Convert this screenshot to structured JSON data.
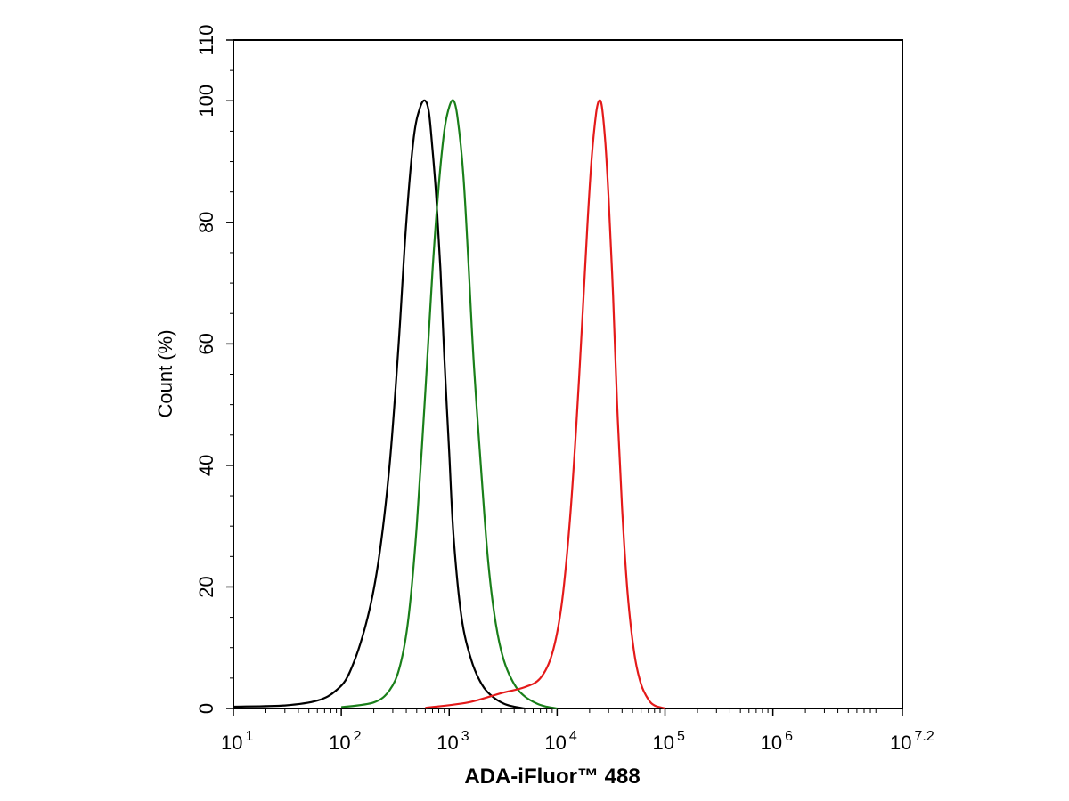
{
  "chart_data": {
    "type": "line",
    "title": "",
    "xlabel": "ADA-iFluor™ 488",
    "ylabel": "Count  (%)",
    "x_scale": "log",
    "xlim": [
      10,
      15848932
    ],
    "ylim": [
      0,
      110
    ],
    "x_ticks": [
      {
        "base": "10",
        "exp": "1"
      },
      {
        "base": "10",
        "exp": "2"
      },
      {
        "base": "10",
        "exp": "3"
      },
      {
        "base": "10",
        "exp": "4"
      },
      {
        "base": "10",
        "exp": "5"
      },
      {
        "base": "10",
        "exp": "6"
      },
      {
        "base": "10",
        "exp": "7.2"
      }
    ],
    "y_ticks": [
      "0",
      "20",
      "40",
      "60",
      "80",
      "100",
      "110"
    ],
    "grid": false,
    "legend": "none",
    "series": [
      {
        "color": "#000000",
        "x": [
          10,
          30,
          60,
          90,
          120,
          170,
          220,
          280,
          340,
          400,
          470,
          540,
          600,
          650,
          700,
          760,
          830,
          900,
          1000,
          1100,
          1300,
          1600,
          2000,
          2500,
          3200,
          4000,
          5000
        ],
        "y": [
          0.3,
          0.5,
          1.3,
          3,
          6,
          14,
          24,
          40,
          60,
          80,
          94,
          99,
          100,
          98,
          92,
          84,
          72,
          58,
          42,
          28,
          15,
          8,
          4,
          2,
          0.8,
          0.3,
          0
        ]
      },
      {
        "color": "#1a7f1a",
        "x": [
          100,
          200,
          280,
          350,
          420,
          500,
          600,
          700,
          800,
          900,
          1000,
          1100,
          1200,
          1350,
          1500,
          1700,
          2000,
          2300,
          2700,
          3200,
          4000,
          5000,
          6500,
          8000,
          10000
        ],
        "y": [
          0.2,
          1,
          3,
          7,
          15,
          30,
          52,
          72,
          86,
          95,
          99,
          100,
          97,
          88,
          74,
          56,
          38,
          24,
          14,
          8,
          4,
          2,
          0.8,
          0.3,
          0
        ]
      },
      {
        "color": "#e41a1a",
        "x": [
          600,
          1500,
          3000,
          5000,
          7000,
          9000,
          11000,
          13000,
          15000,
          17000,
          19000,
          21000,
          23000,
          24500,
          26000,
          28000,
          30000,
          33000,
          36000,
          40000,
          45000,
          52000,
          60000,
          70000,
          80000,
          100000
        ],
        "y": [
          0.1,
          1,
          2.5,
          3.5,
          5,
          9,
          17,
          30,
          46,
          63,
          79,
          91,
          98,
          100,
          99,
          93,
          84,
          68,
          50,
          33,
          19,
          9,
          4,
          1.5,
          0.5,
          0
        ]
      }
    ]
  }
}
